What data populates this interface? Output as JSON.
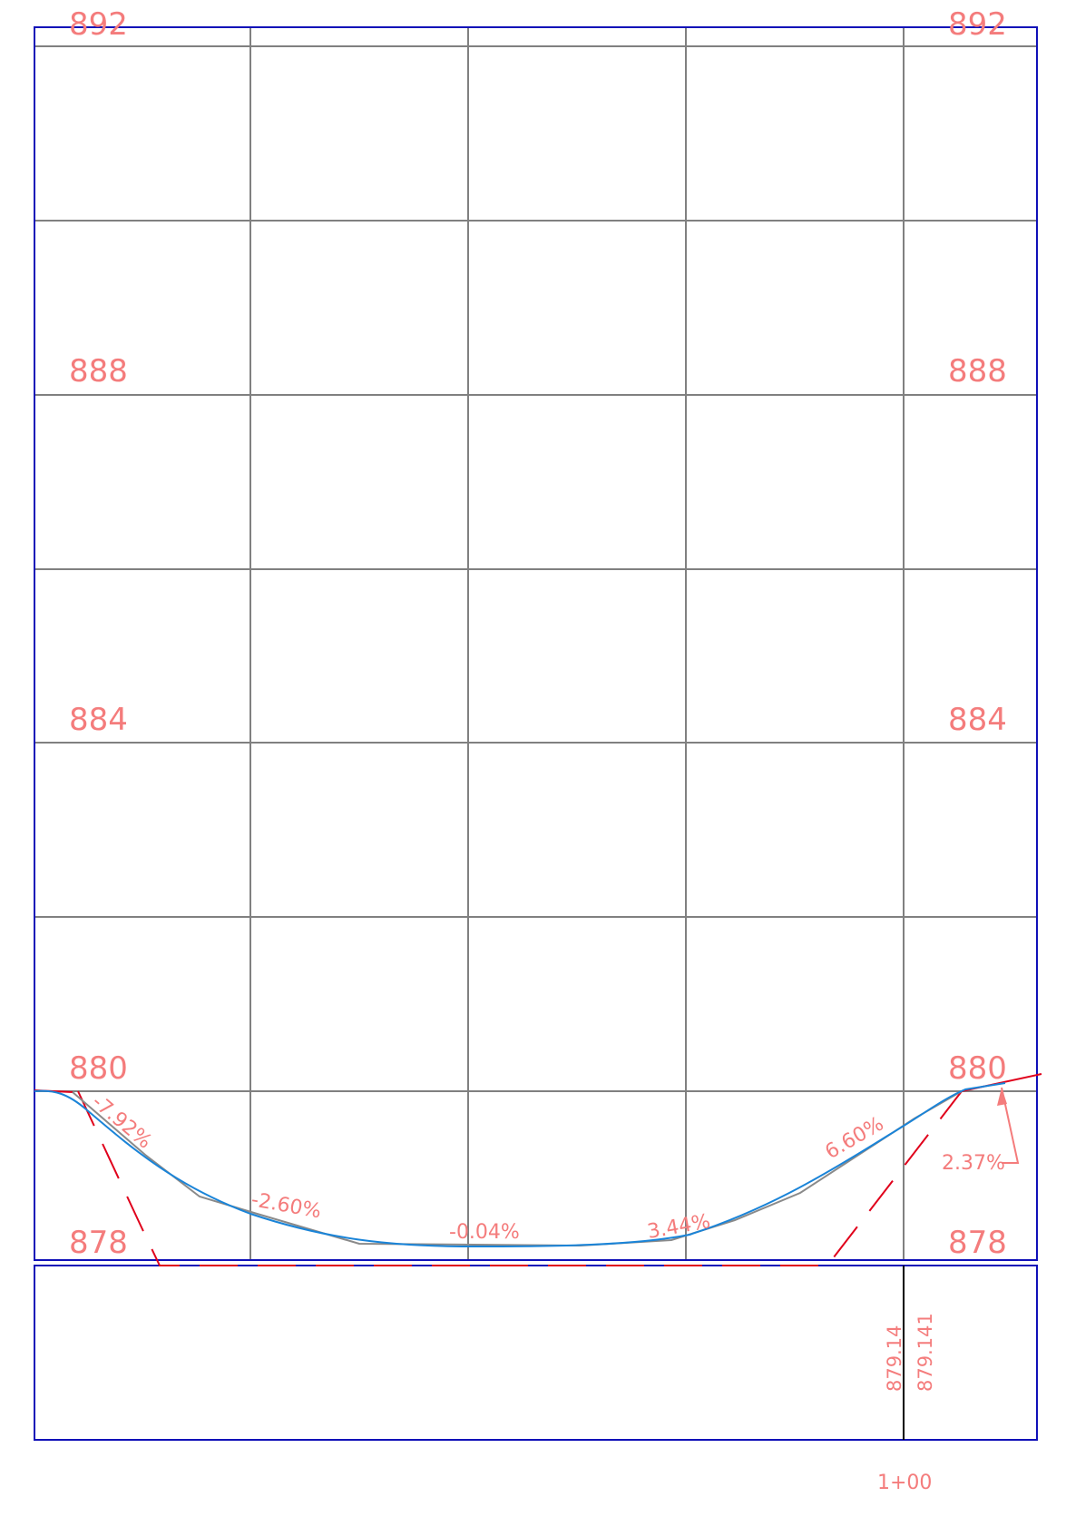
{
  "profile": {
    "elevation_labels": {
      "left": [
        "892",
        "888",
        "884",
        "880",
        "878"
      ],
      "right": [
        "892",
        "888",
        "884",
        "880",
        "878"
      ]
    },
    "slope_labels": [
      "-7.92%",
      "-2.60%",
      "-0.04%",
      "3.44%",
      "6.60%",
      "2.37%"
    ],
    "band": {
      "values": [
        "879.14",
        "879.141"
      ],
      "station": "1+00"
    },
    "colors": {
      "frame": "#1010b8",
      "grid": "#808080",
      "label": "#f47c7c",
      "existing_ground": "#e0001b",
      "finished_grade": "#1a84d8",
      "tangent": "#8a8a8a",
      "station_line": "#000000"
    },
    "legend": null
  }
}
